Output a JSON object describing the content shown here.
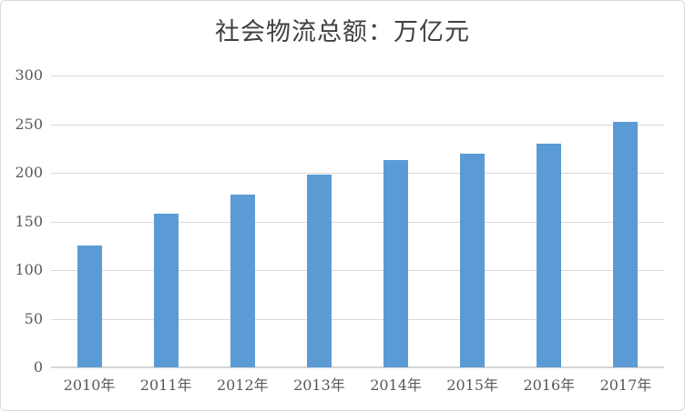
{
  "chart_data": {
    "type": "bar",
    "title": "社会物流总额：万亿元",
    "categories": [
      "2010年",
      "2011年",
      "2012年",
      "2013年",
      "2014年",
      "2015年",
      "2016年",
      "2017年"
    ],
    "values": [
      125.4,
      158.4,
      177.3,
      197.8,
      213.5,
      219.2,
      229.7,
      252.8
    ],
    "xlabel": "",
    "ylabel": "",
    "ylim": [
      0,
      300
    ],
    "yticks": [
      0,
      50,
      100,
      150,
      200,
      250,
      300
    ],
    "grid": true,
    "legend": false,
    "bar_color": "#5b9bd5",
    "gridline_color": "#d9d9d9",
    "axis_line_color": "#d6d6d6",
    "tick_label_color": "#595959",
    "title_color": "#404040",
    "border_color": "#d9d9d9"
  }
}
